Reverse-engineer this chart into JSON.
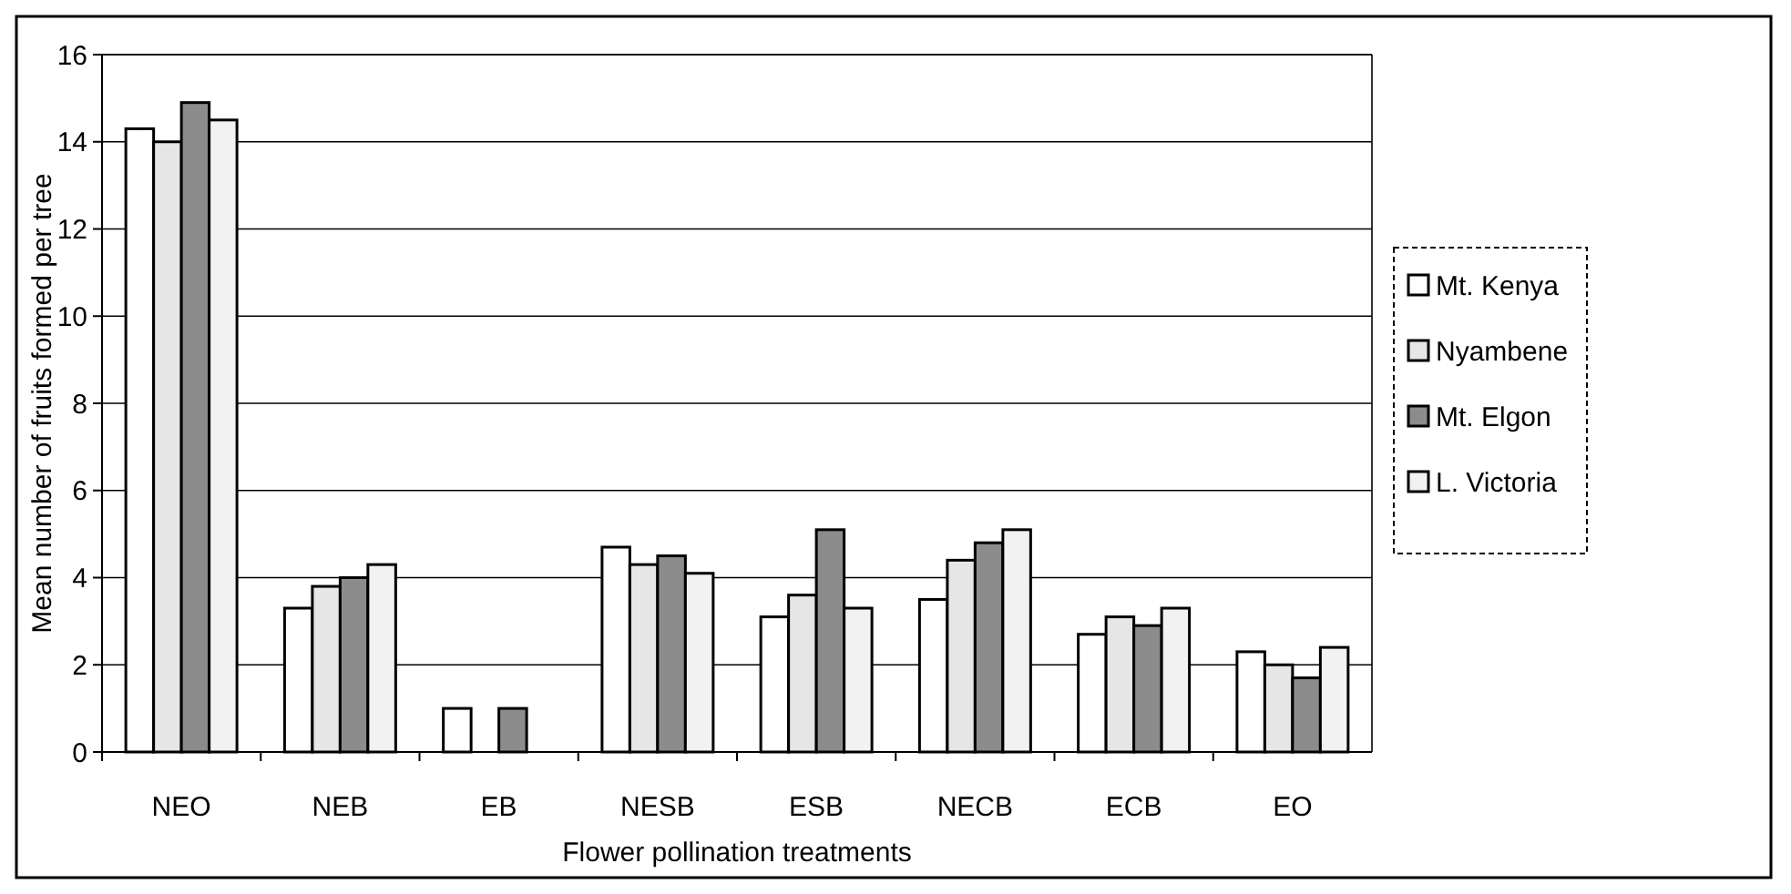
{
  "chart_data": {
    "type": "bar",
    "xlabel": "Flower pollination treatments",
    "ylabel": "Mean number of fruits formed per tree",
    "categories": [
      "NEO",
      "NEB",
      "EB",
      "NESB",
      "ESB",
      "NECB",
      "ECB",
      "EO"
    ],
    "series": [
      {
        "name": "Mt. Kenya",
        "color": "#ffffff",
        "values": [
          14.3,
          3.3,
          1.0,
          4.7,
          3.1,
          3.5,
          2.7,
          2.3
        ]
      },
      {
        "name": "Nyambene",
        "color": "#e6e6e6",
        "values": [
          14.0,
          3.8,
          0,
          4.3,
          3.6,
          4.4,
          3.1,
          2.0
        ]
      },
      {
        "name": "Mt. Elgon",
        "color": "#8c8c8c",
        "values": [
          14.9,
          4.0,
          1.0,
          4.5,
          5.1,
          4.8,
          2.9,
          1.7
        ]
      },
      {
        "name": "L. Victoria",
        "color": "#f2f2f2",
        "values": [
          14.5,
          4.3,
          0,
          4.1,
          3.3,
          5.1,
          3.3,
          2.4
        ]
      }
    ],
    "ylim": [
      0,
      16
    ],
    "yticks": [
      0,
      2,
      4,
      6,
      8,
      10,
      12,
      14,
      16
    ],
    "grid": "y",
    "legend": "right"
  }
}
